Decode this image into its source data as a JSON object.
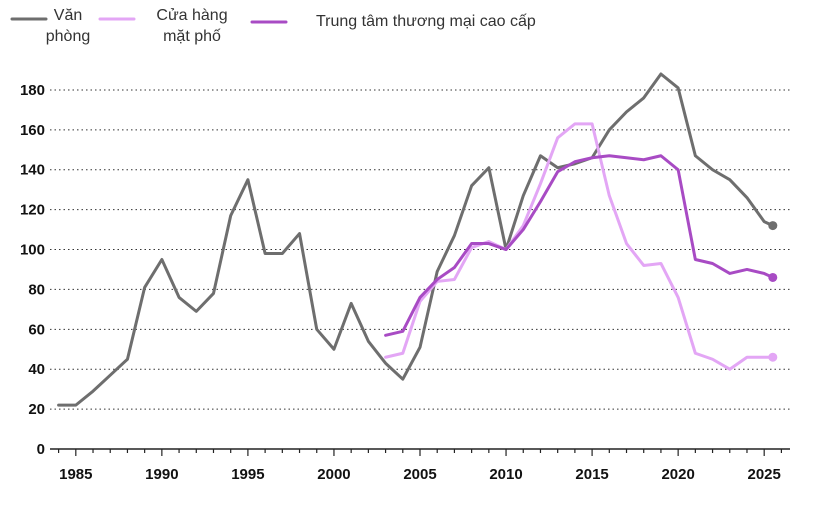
{
  "chart_data": {
    "type": "line",
    "title": "",
    "xlabel": "",
    "ylabel": "",
    "xlim": [
      1983.5,
      2026.5
    ],
    "ylim": [
      0,
      190
    ],
    "yticks": [
      0,
      20,
      40,
      60,
      80,
      100,
      120,
      140,
      160,
      180
    ],
    "xticks": [
      1985,
      1990,
      1995,
      2000,
      2005,
      2010,
      2015,
      2020,
      2025
    ],
    "grid": true,
    "legend_position": "top",
    "series": [
      {
        "name": "Văn phòng",
        "legend_lines": [
          "Văn",
          "phòng"
        ],
        "color": "#6e6e6e",
        "end_marker": true,
        "points": [
          [
            1984,
            22
          ],
          [
            1985,
            22
          ],
          [
            1986,
            29
          ],
          [
            1987,
            37
          ],
          [
            1988,
            45
          ],
          [
            1989,
            81
          ],
          [
            1990,
            95
          ],
          [
            1991,
            76
          ],
          [
            1992,
            69
          ],
          [
            1993,
            78
          ],
          [
            1994,
            117
          ],
          [
            1995,
            135
          ],
          [
            1996,
            98
          ],
          [
            1997,
            98
          ],
          [
            1998,
            108
          ],
          [
            1999,
            60
          ],
          [
            2000,
            50
          ],
          [
            2001,
            73
          ],
          [
            2002,
            54
          ],
          [
            2003,
            43
          ],
          [
            2004,
            35
          ],
          [
            2005,
            51
          ],
          [
            2006,
            89
          ],
          [
            2007,
            107
          ],
          [
            2008,
            132
          ],
          [
            2009,
            141
          ],
          [
            2010,
            100
          ],
          [
            2011,
            127
          ],
          [
            2012,
            147
          ],
          [
            2013,
            141
          ],
          [
            2014,
            143
          ],
          [
            2015,
            146
          ],
          [
            2016,
            160
          ],
          [
            2017,
            169
          ],
          [
            2018,
            176
          ],
          [
            2019,
            188
          ],
          [
            2020,
            181
          ],
          [
            2021,
            147
          ],
          [
            2022,
            140
          ],
          [
            2023,
            135
          ],
          [
            2024,
            126
          ],
          [
            2025,
            114
          ],
          [
            2025.5,
            112
          ]
        ]
      },
      {
        "name": "Cửa hàng mặt phố",
        "legend_lines": [
          "Cửa hàng",
          "mặt phố"
        ],
        "color": "#e3a6f5",
        "end_marker": true,
        "points": [
          [
            2003,
            46
          ],
          [
            2004,
            48
          ],
          [
            2005,
            74
          ],
          [
            2006,
            84
          ],
          [
            2007,
            85
          ],
          [
            2008,
            101
          ],
          [
            2009,
            104
          ],
          [
            2010,
            100
          ],
          [
            2011,
            112
          ],
          [
            2012,
            133
          ],
          [
            2013,
            156
          ],
          [
            2014,
            163
          ],
          [
            2015,
            163
          ],
          [
            2016,
            127
          ],
          [
            2017,
            103
          ],
          [
            2018,
            92
          ],
          [
            2019,
            93
          ],
          [
            2020,
            76
          ],
          [
            2021,
            48
          ],
          [
            2022,
            45
          ],
          [
            2023,
            40
          ],
          [
            2024,
            46
          ],
          [
            2025.5,
            46
          ]
        ]
      },
      {
        "name": "Trung tâm thương mại cao cấp",
        "legend_lines": [
          "Trung tâm thương mại cao cấp"
        ],
        "color": "#a84bc4",
        "end_marker": true,
        "points": [
          [
            2003,
            57
          ],
          [
            2004,
            59
          ],
          [
            2005,
            76
          ],
          [
            2006,
            85
          ],
          [
            2007,
            91
          ],
          [
            2008,
            103
          ],
          [
            2009,
            103
          ],
          [
            2010,
            100
          ],
          [
            2011,
            110
          ],
          [
            2012,
            124
          ],
          [
            2013,
            139
          ],
          [
            2014,
            144
          ],
          [
            2015,
            146
          ],
          [
            2016,
            147
          ],
          [
            2017,
            146
          ],
          [
            2018,
            145
          ],
          [
            2019,
            147
          ],
          [
            2020,
            140
          ],
          [
            2021,
            95
          ],
          [
            2022,
            93
          ],
          [
            2023,
            88
          ],
          [
            2024,
            90
          ],
          [
            2025,
            88
          ],
          [
            2025.5,
            86
          ]
        ]
      }
    ]
  }
}
